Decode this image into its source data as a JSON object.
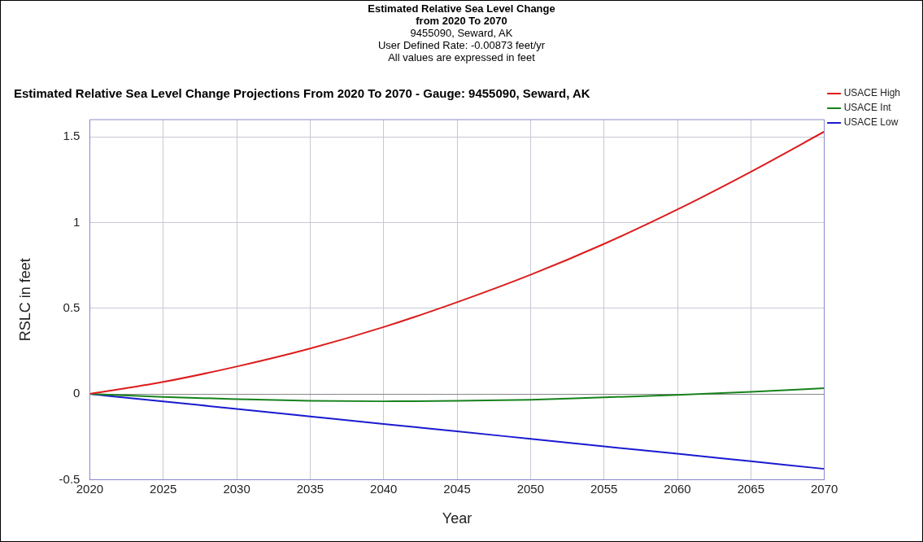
{
  "chart_data": {
    "type": "line",
    "title": "Estimated Relative Sea Level Change\nfrom 2020 To 2070",
    "annotations": [
      "9455090, Seward, AK",
      "User Defined Rate: -0.00873 feet/yr",
      "All values are expressed in feet"
    ],
    "subtitle": "Estimated Relative Sea Level Change Projections From 2020 To 2070 - Gauge: 9455090, Seward, AK",
    "xlabel": "Year",
    "ylabel": "RSLC in feet",
    "x": [
      2020,
      2025,
      2030,
      2035,
      2040,
      2045,
      2050,
      2055,
      2060,
      2065,
      2070
    ],
    "series": [
      {
        "name": "USACE High",
        "color": "#dd1c1c",
        "values": [
          0,
          0.07,
          0.16,
          0.265,
          0.39,
          0.535,
          0.695,
          0.875,
          1.076,
          1.296,
          1.53
        ]
      },
      {
        "name": "USACE Int",
        "color": "#17821d",
        "values": [
          0,
          -0.018,
          -0.03,
          -0.04,
          -0.043,
          -0.04,
          -0.034,
          -0.02,
          -0.006,
          0.012,
          0.034
        ]
      },
      {
        "name": "USACE Low",
        "color": "#1a1ad0",
        "values": [
          0,
          -0.044,
          -0.087,
          -0.131,
          -0.175,
          -0.218,
          -0.262,
          -0.306,
          -0.349,
          -0.393,
          -0.437
        ]
      }
    ],
    "xlim": [
      2020,
      2070
    ],
    "xticks": [
      2020,
      2025,
      2030,
      2035,
      2040,
      2045,
      2050,
      2055,
      2060,
      2065,
      2070
    ],
    "ylim": [
      -0.5,
      1.6
    ],
    "yticks": [
      -0.5,
      0,
      0.5,
      1,
      1.5
    ],
    "grid": true,
    "legend": "top right",
    "marker": "none",
    "line_style": "solid"
  }
}
